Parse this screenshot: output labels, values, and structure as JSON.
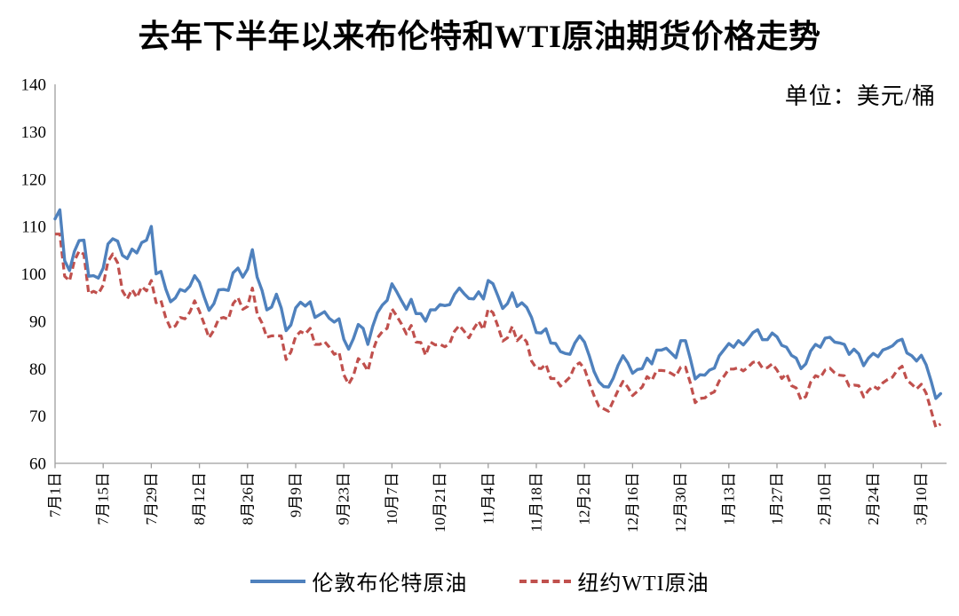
{
  "title": "去年下半年以来布伦特和WTI原油期货价格走势",
  "unit_label": "单位：美元/桶",
  "chart_data": {
    "type": "line",
    "title": "去年下半年以来布伦特和WTI原油期货价格走势",
    "unit": "美元/桶",
    "xlabel": "",
    "ylabel": "",
    "ylim": [
      60,
      140
    ],
    "yticks": [
      60,
      70,
      80,
      90,
      100,
      110,
      120,
      130,
      140
    ],
    "grid": false,
    "legend_position": "bottom",
    "x_tick_interval": 10,
    "x_tick_labels": [
      "7月1日",
      "7月15日",
      "7月29日",
      "8月12日",
      "8月26日",
      "9月9日",
      "9月23日",
      "10月7日",
      "10月21日",
      "11月4日",
      "11月18日",
      "12月2日",
      "12月16日",
      "12月30日",
      "1月13日",
      "1月27日",
      "2月10日",
      "2月24日",
      "3月10日"
    ],
    "series": [
      {
        "name": "伦敦布伦特原油",
        "color": "#4F81BD",
        "line_style": "solid",
        "values": [
          111.6,
          113.5,
          102.8,
          100.7,
          104.7,
          107.0,
          107.1,
          99.5,
          99.6,
          99.1,
          101.2,
          106.3,
          107.4,
          106.9,
          103.9,
          103.2,
          105.2,
          104.4,
          106.6,
          107.1,
          110.0,
          100.0,
          100.5,
          96.8,
          94.1,
          94.9,
          96.7,
          96.3,
          97.4,
          99.6,
          98.2,
          95.1,
          92.3,
          93.7,
          96.6,
          96.7,
          96.5,
          100.2,
          101.2,
          99.3,
          101.0,
          105.1,
          99.3,
          96.5,
          92.4,
          93.0,
          95.7,
          92.8,
          88.0,
          89.2,
          92.8,
          94.0,
          93.2,
          94.1,
          90.8,
          91.4,
          92.0,
          90.6,
          89.8,
          90.5,
          86.2,
          84.1,
          86.3,
          89.3,
          88.5,
          85.1,
          88.9,
          91.8,
          93.4,
          94.4,
          97.9,
          96.2,
          94.3,
          92.5,
          94.6,
          91.6,
          91.6,
          90.0,
          92.4,
          92.4,
          93.5,
          93.3,
          93.5,
          95.7,
          97.0,
          95.8,
          94.8,
          94.7,
          96.2,
          94.7,
          98.6,
          97.9,
          95.4,
          92.7,
          93.7,
          96.0,
          93.1,
          93.9,
          92.9,
          90.8,
          87.6,
          87.5,
          88.4,
          85.4,
          85.3,
          83.6,
          83.2,
          83.0,
          85.4,
          86.9,
          85.6,
          82.7,
          79.4,
          77.2,
          76.2,
          76.1,
          78.0,
          80.7,
          82.7,
          81.2,
          79.0,
          79.8,
          80.0,
          82.2,
          81.0,
          83.9,
          83.9,
          84.3,
          83.3,
          82.3,
          85.9,
          85.9,
          82.1,
          77.8,
          78.7,
          78.6,
          79.7,
          80.1,
          82.7,
          84.0,
          85.3,
          84.5,
          85.9,
          85.0,
          86.2,
          87.6,
          88.2,
          86.1,
          86.1,
          87.5,
          86.7,
          84.9,
          84.5,
          82.8,
          82.2,
          80.0,
          81.0,
          83.7,
          85.1,
          84.5,
          86.4,
          86.6,
          85.6,
          85.4,
          85.1,
          83.0,
          84.1,
          83.1,
          80.6,
          82.2,
          83.2,
          82.5,
          83.9,
          84.3,
          84.8,
          85.8,
          86.2,
          83.3,
          82.7,
          81.6,
          82.8,
          80.8,
          77.5,
          73.7,
          74.7
        ]
      },
      {
        "name": "纽约WTI原油",
        "color": "#C0504D",
        "line_style": "dashed",
        "values": [
          108.4,
          108.4,
          99.5,
          98.5,
          102.7,
          104.8,
          104.1,
          95.8,
          96.3,
          95.8,
          97.6,
          102.6,
          104.2,
          102.3,
          96.4,
          94.7,
          96.7,
          95.0,
          97.3,
          96.4,
          98.6,
          93.9,
          94.4,
          90.7,
          88.5,
          89.0,
          90.8,
          90.5,
          91.9,
          94.3,
          92.1,
          89.4,
          86.5,
          88.1,
          90.5,
          90.8,
          90.4,
          93.7,
          95.0,
          92.5,
          93.1,
          97.0,
          91.6,
          89.6,
          86.6,
          86.9,
          86.9,
          86.9,
          81.9,
          83.5,
          86.8,
          87.8,
          87.3,
          88.5,
          85.1,
          85.1,
          85.7,
          84.5,
          83.0,
          83.5,
          78.7,
          76.7,
          78.5,
          82.1,
          81.2,
          79.5,
          83.6,
          86.5,
          87.8,
          88.5,
          92.6,
          91.1,
          89.4,
          87.3,
          89.1,
          85.6,
          85.5,
          82.8,
          85.6,
          85.0,
          85.1,
          84.6,
          85.3,
          87.9,
          89.1,
          87.9,
          86.5,
          88.4,
          90.0,
          88.2,
          92.6,
          91.8,
          89.0,
          85.8,
          86.5,
          88.9,
          85.9,
          86.9,
          85.6,
          81.6,
          80.1,
          80.0,
          80.9,
          77.9,
          77.9,
          76.3,
          77.2,
          78.2,
          80.6,
          81.2,
          80.0,
          77.0,
          74.3,
          72.0,
          71.5,
          71.0,
          73.2,
          75.4,
          77.3,
          76.1,
          74.3,
          75.2,
          76.1,
          78.3,
          77.5,
          79.6,
          79.6,
          79.5,
          79.0,
          78.4,
          80.3,
          80.3,
          77.0,
          72.8,
          73.7,
          73.8,
          74.6,
          75.1,
          77.4,
          78.4,
          79.9,
          79.9,
          80.2,
          79.5,
          80.3,
          81.3,
          81.6,
          80.1,
          80.2,
          81.0,
          79.7,
          77.9,
          78.9,
          76.4,
          75.9,
          73.4,
          74.1,
          77.1,
          78.5,
          78.1,
          79.7,
          80.1,
          79.1,
          78.6,
          78.5,
          76.3,
          76.5,
          76.4,
          74.0,
          75.4,
          76.3,
          75.7,
          77.0,
          77.7,
          78.2,
          79.7,
          80.5,
          77.6,
          76.7,
          75.7,
          76.7,
          74.8,
          71.3,
          67.6,
          68.3
        ]
      }
    ],
    "style": {
      "axis_color": "#9e9e9e",
      "text_color": "#000000",
      "background": "#ffffff"
    }
  }
}
